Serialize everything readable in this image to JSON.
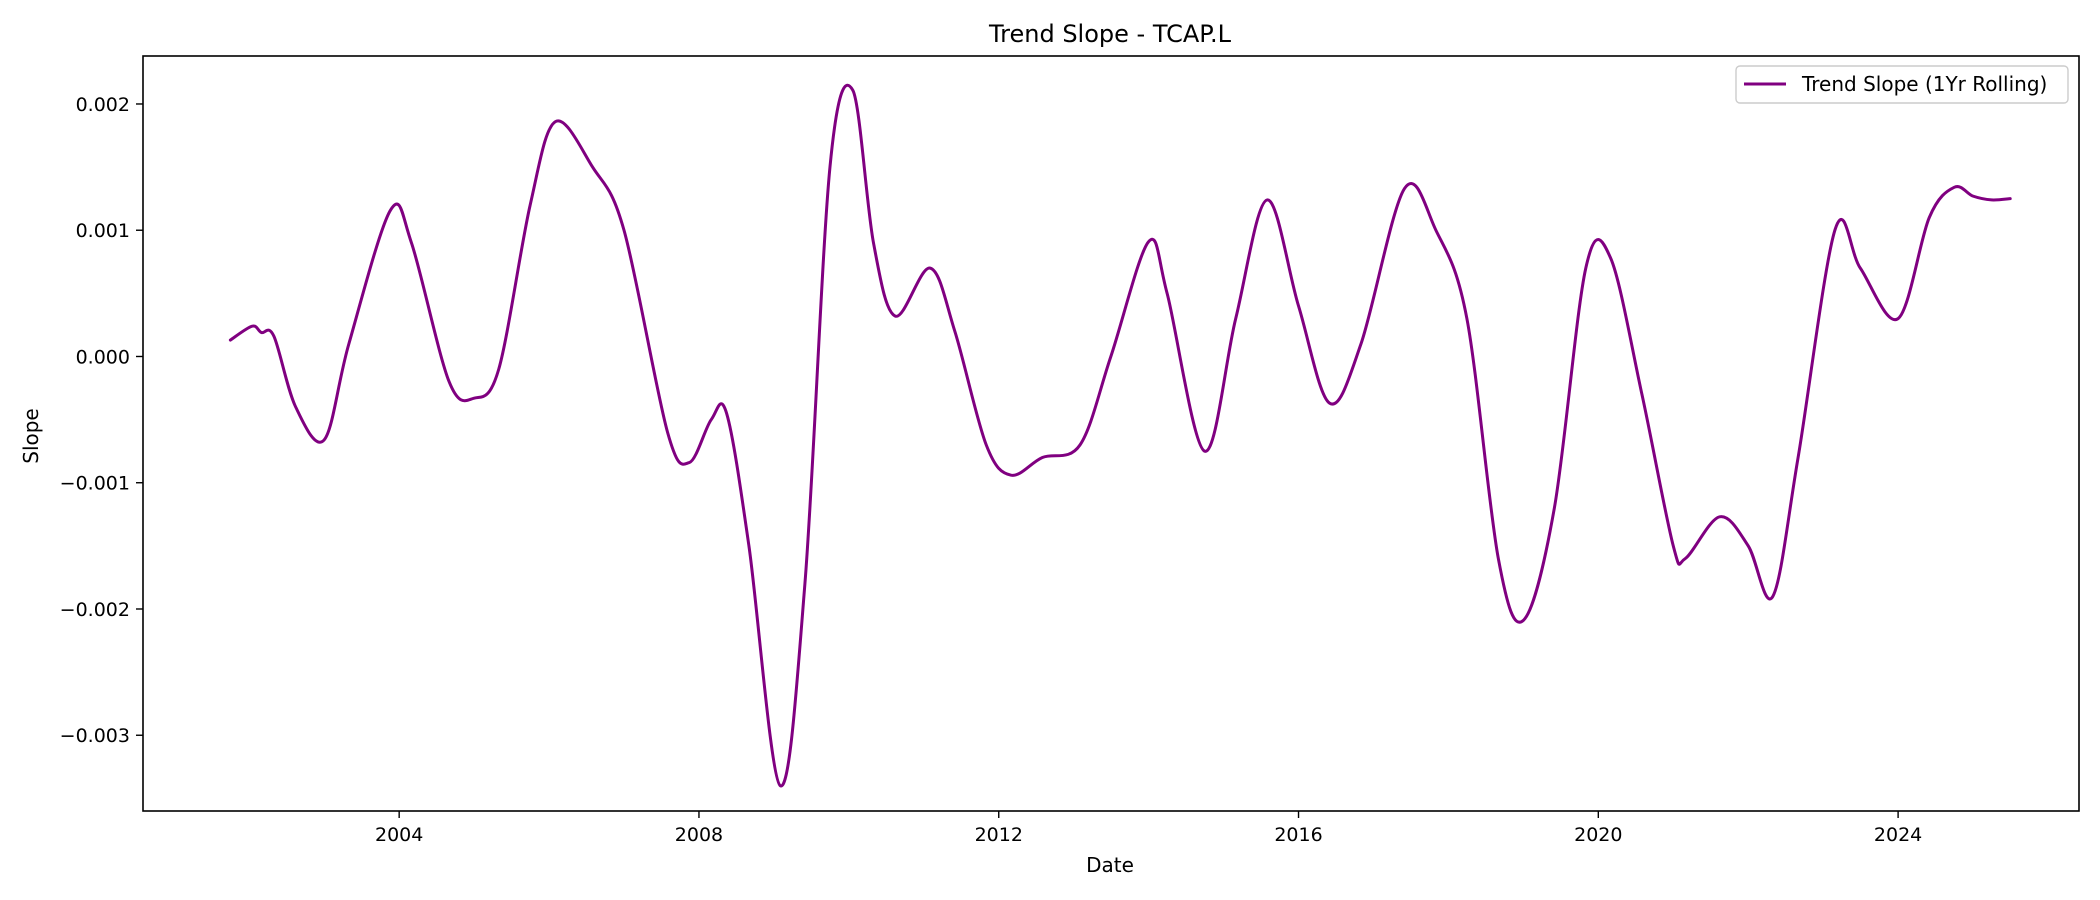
{
  "chart_data": {
    "type": "line",
    "title": "Trend Slope - TCAP.L",
    "xlabel": "Date",
    "ylabel": "Slope",
    "xlim": [
      "2000-08-01",
      "2026-06-01"
    ],
    "ylim": [
      -0.0036,
      0.00238
    ],
    "x_ticks": [
      "2004",
      "2008",
      "2012",
      "2016",
      "2020",
      "2024"
    ],
    "y_ticks": [
      "−0.003",
      "−0.002",
      "−0.001",
      "0.000",
      "0.001",
      "0.002"
    ],
    "grid": false,
    "legend_position": "top-right",
    "series": [
      {
        "name": "Trend Slope (1Yr Rolling)",
        "color": "#800080",
        "points": [
          [
            "2001-10-01",
            0.00013
          ],
          [
            "2002-01-15",
            0.00024
          ],
          [
            "2002-03-01",
            0.00019
          ],
          [
            "2002-05-01",
            0.00016
          ],
          [
            "2002-08-15",
            -0.0004
          ],
          [
            "2003-01-01",
            -0.00066
          ],
          [
            "2003-05-01",
            0.0001
          ],
          [
            "2003-11-20",
            0.00116
          ],
          [
            "2004-03-01",
            0.0009
          ],
          [
            "2004-09-01",
            -0.0002
          ],
          [
            "2005-01-01",
            -0.00033
          ],
          [
            "2005-05-01",
            -0.0001
          ],
          [
            "2005-10-01",
            0.0012
          ],
          [
            "2006-02-01",
            0.00186
          ],
          [
            "2006-08-01",
            0.0015
          ],
          [
            "2007-01-01",
            0.001
          ],
          [
            "2007-08-01",
            -0.0006
          ],
          [
            "2007-11-15",
            -0.00084
          ],
          [
            "2008-03-01",
            -0.0005
          ],
          [
            "2008-05-15",
            -0.00045
          ],
          [
            "2008-09-01",
            -0.0015
          ],
          [
            "2009-02-01",
            -0.0034
          ],
          [
            "2009-06-01",
            -0.0018
          ],
          [
            "2009-10-01",
            0.0015
          ],
          [
            "2010-01-20",
            0.00211
          ],
          [
            "2010-05-01",
            0.0009
          ],
          [
            "2010-08-15",
            0.00032
          ],
          [
            "2011-02-01",
            0.0007
          ],
          [
            "2011-06-01",
            0.0002
          ],
          [
            "2011-11-01",
            -0.0007
          ],
          [
            "2012-03-01",
            -0.00094
          ],
          [
            "2012-08-01",
            -0.0008
          ],
          [
            "2013-02-01",
            -0.0007
          ],
          [
            "2013-07-01",
            0.0
          ],
          [
            "2014-01-01",
            0.00091
          ],
          [
            "2014-04-01",
            0.0005
          ],
          [
            "2014-10-01",
            -0.00075
          ],
          [
            "2015-03-01",
            0.0003
          ],
          [
            "2015-08-01",
            0.00124
          ],
          [
            "2016-01-01",
            0.0004
          ],
          [
            "2016-06-01",
            -0.00037
          ],
          [
            "2016-11-01",
            0.0001
          ],
          [
            "2017-06-01",
            0.00133
          ],
          [
            "2017-11-01",
            0.001
          ],
          [
            "2018-04-01",
            0.0003
          ],
          [
            "2018-09-01",
            -0.0016
          ],
          [
            "2019-01-01",
            -0.00209
          ],
          [
            "2019-06-01",
            -0.0012
          ],
          [
            "2019-11-01",
            0.0007
          ],
          [
            "2020-03-01",
            0.00078
          ],
          [
            "2020-08-01",
            -0.0003
          ],
          [
            "2021-01-01",
            -0.0015
          ],
          [
            "2021-03-01",
            -0.0016
          ],
          [
            "2021-08-15",
            -0.00127
          ],
          [
            "2022-01-01",
            -0.0015
          ],
          [
            "2022-05-01",
            -0.0019
          ],
          [
            "2022-09-01",
            -0.0008
          ],
          [
            "2023-03-01",
            0.00101
          ],
          [
            "2023-07-01",
            0.0007
          ],
          [
            "2024-01-01",
            0.0003
          ],
          [
            "2024-06-01",
            0.0011
          ],
          [
            "2024-10-01",
            0.00134
          ],
          [
            "2025-01-01",
            0.00127
          ],
          [
            "2025-04-01",
            0.00124
          ],
          [
            "2025-07-01",
            0.00125
          ]
        ]
      }
    ]
  }
}
